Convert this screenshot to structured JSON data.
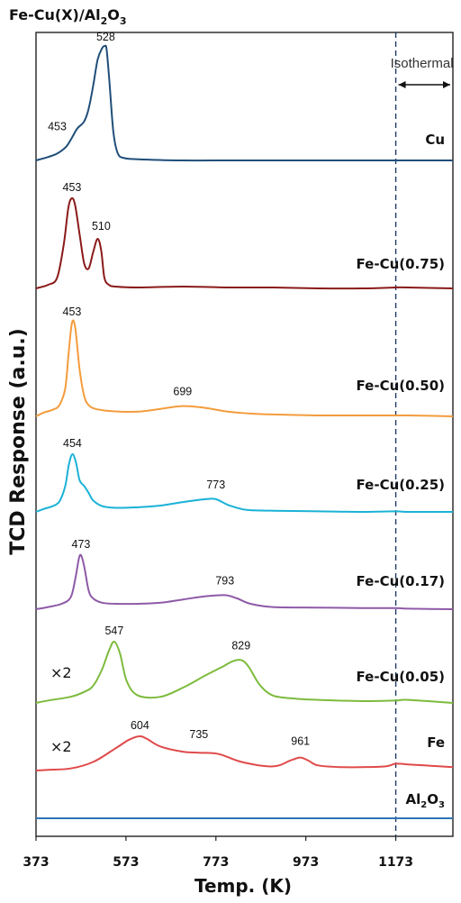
{
  "chart_data": {
    "type": "line",
    "title": "Fe-Cu(X)/Al2O3",
    "title_parts": {
      "main": "Fe-Cu(X)/Al",
      "sub1": "2",
      "mid": "O",
      "sub2": "3"
    },
    "xlabel": "Temp. (K)",
    "ylabel": "TCD Response (a.u.)",
    "xlim": [
      373,
      1300
    ],
    "xticks": [
      373,
      573,
      773,
      973,
      1173
    ],
    "grid": false,
    "isothermal": {
      "x": 1173,
      "label": "Isothermal",
      "color": "#1f3864"
    },
    "series": [
      {
        "name": "Cu",
        "color": "#1f4e79",
        "multiplier": "",
        "peaks": [
          {
            "x": 453,
            "label": "453"
          },
          {
            "x": 528,
            "label": "528"
          }
        ],
        "x": [
          373,
          400,
          420,
          440,
          453,
          465,
          480,
          490,
          500,
          510,
          520,
          526,
          530,
          536,
          545,
          555,
          570,
          600,
          700,
          800,
          900,
          1000,
          1100,
          1173,
          1200,
          1250,
          1300
        ],
        "y": [
          0.0,
          0.03,
          0.06,
          0.12,
          0.2,
          0.28,
          0.34,
          0.45,
          0.65,
          0.88,
          0.98,
          1.0,
          0.97,
          0.7,
          0.25,
          0.06,
          0.02,
          0.01,
          0.0,
          0.0,
          0.0,
          0.0,
          0.0,
          0.0,
          0.0,
          0.0,
          0.0
        ]
      },
      {
        "name": "Fe-Cu(0.75)",
        "color": "#8b1a1a",
        "multiplier": "",
        "peaks": [
          {
            "x": 453,
            "label": "453"
          },
          {
            "x": 510,
            "label": "510"
          }
        ],
        "x": [
          373,
          400,
          420,
          435,
          445,
          453,
          460,
          470,
          480,
          490,
          500,
          510,
          518,
          525,
          535,
          550,
          600,
          700,
          800,
          900,
          1000,
          1100,
          1173,
          1200,
          1300
        ],
        "y": [
          0.0,
          0.04,
          0.12,
          0.5,
          0.9,
          1.0,
          0.92,
          0.6,
          0.28,
          0.22,
          0.4,
          0.55,
          0.42,
          0.12,
          0.04,
          0.02,
          0.01,
          0.02,
          0.01,
          0.01,
          0.0,
          0.0,
          0.01,
          0.01,
          0.0
        ]
      },
      {
        "name": "Fe-Cu(0.50)",
        "color": "#f39c3d",
        "multiplier": "",
        "peaks": [
          {
            "x": 453,
            "label": "453"
          },
          {
            "x": 699,
            "label": "699"
          }
        ],
        "x": [
          373,
          390,
          410,
          425,
          438,
          446,
          453,
          460,
          470,
          480,
          490,
          505,
          530,
          560,
          600,
          650,
          700,
          750,
          800,
          850,
          900,
          1000,
          1100,
          1173,
          1200,
          1300
        ],
        "y": [
          0.0,
          0.04,
          0.07,
          0.12,
          0.3,
          0.7,
          1.0,
          0.95,
          0.5,
          0.22,
          0.12,
          0.08,
          0.06,
          0.05,
          0.05,
          0.08,
          0.11,
          0.09,
          0.05,
          0.03,
          0.02,
          0.01,
          0.01,
          0.01,
          0.01,
          0.0
        ]
      },
      {
        "name": "Fe-Cu(0.25)",
        "color": "#1ab2d6",
        "multiplier": "",
        "peaks": [
          {
            "x": 454,
            "label": "454"
          },
          {
            "x": 773,
            "label": "773"
          }
        ],
        "x": [
          373,
          390,
          410,
          425,
          438,
          446,
          454,
          462,
          470,
          480,
          490,
          500,
          520,
          550,
          600,
          650,
          700,
          750,
          773,
          800,
          830,
          850,
          900,
          1000,
          1100,
          1173,
          1200,
          1300
        ],
        "y": [
          0.0,
          0.05,
          0.1,
          0.18,
          0.45,
          0.82,
          1.0,
          0.85,
          0.55,
          0.45,
          0.33,
          0.2,
          0.1,
          0.07,
          0.08,
          0.11,
          0.17,
          0.22,
          0.22,
          0.12,
          0.05,
          0.03,
          0.02,
          0.01,
          0.0,
          0.01,
          0.0,
          0.0
        ]
      },
      {
        "name": "Fe-Cu(0.17)",
        "color": "#8e5aa8",
        "multiplier": "",
        "peaks": [
          {
            "x": 473,
            "label": "473"
          },
          {
            "x": 793,
            "label": "793"
          }
        ],
        "x": [
          373,
          400,
          430,
          450,
          460,
          468,
          473,
          480,
          490,
          500,
          520,
          550,
          600,
          650,
          700,
          750,
          793,
          820,
          850,
          900,
          1000,
          1100,
          1173,
          1200,
          1300
        ],
        "y": [
          0.0,
          0.04,
          0.1,
          0.22,
          0.55,
          0.92,
          1.0,
          0.8,
          0.35,
          0.2,
          0.12,
          0.1,
          0.1,
          0.12,
          0.18,
          0.24,
          0.26,
          0.2,
          0.1,
          0.04,
          0.03,
          0.02,
          0.02,
          0.01,
          0.0
        ]
      },
      {
        "name": "Fe-Cu(0.05)",
        "color": "#7dbb3c",
        "multiplier": "×2",
        "peaks": [
          {
            "x": 547,
            "label": "547"
          },
          {
            "x": 829,
            "label": "829"
          }
        ],
        "x": [
          373,
          400,
          450,
          480,
          500,
          520,
          535,
          547,
          560,
          575,
          600,
          650,
          700,
          750,
          790,
          810,
          829,
          845,
          870,
          900,
          950,
          1000,
          1100,
          1173,
          1200,
          1300
        ],
        "y": [
          0.0,
          0.04,
          0.1,
          0.18,
          0.28,
          0.55,
          0.85,
          1.0,
          0.8,
          0.35,
          0.12,
          0.1,
          0.25,
          0.45,
          0.6,
          0.68,
          0.7,
          0.6,
          0.3,
          0.12,
          0.07,
          0.05,
          0.03,
          0.04,
          0.05,
          0.0
        ]
      },
      {
        "name": "Fe",
        "color": "#e04a4a",
        "multiplier": "×2",
        "peaks": [
          {
            "x": 604,
            "label": "604"
          },
          {
            "x": 735,
            "label": "735"
          },
          {
            "x": 961,
            "label": "961"
          }
        ],
        "x": [
          373,
          400,
          450,
          500,
          550,
          580,
          604,
          620,
          650,
          700,
          735,
          780,
          830,
          900,
          940,
          961,
          980,
          1000,
          1050,
          1100,
          1150,
          1173,
          1200,
          1250,
          1300
        ],
        "y": [
          0.0,
          0.02,
          0.06,
          0.25,
          0.65,
          0.9,
          1.0,
          0.92,
          0.7,
          0.55,
          0.52,
          0.48,
          0.25,
          0.12,
          0.3,
          0.38,
          0.28,
          0.15,
          0.1,
          0.1,
          0.12,
          0.2,
          0.18,
          0.14,
          0.1
        ]
      },
      {
        "name": "Al2O3",
        "name_parts": {
          "main": "Al",
          "sub1": "2",
          "mid": "O",
          "sub2": "3"
        },
        "color": "#2e75b6",
        "multiplier": "",
        "peaks": [],
        "x": [
          373,
          500,
          700,
          900,
          1100,
          1173,
          1300
        ],
        "y": [
          0.0,
          0.0,
          0.0,
          0.0,
          0.0,
          0.0,
          0.0
        ]
      }
    ]
  }
}
